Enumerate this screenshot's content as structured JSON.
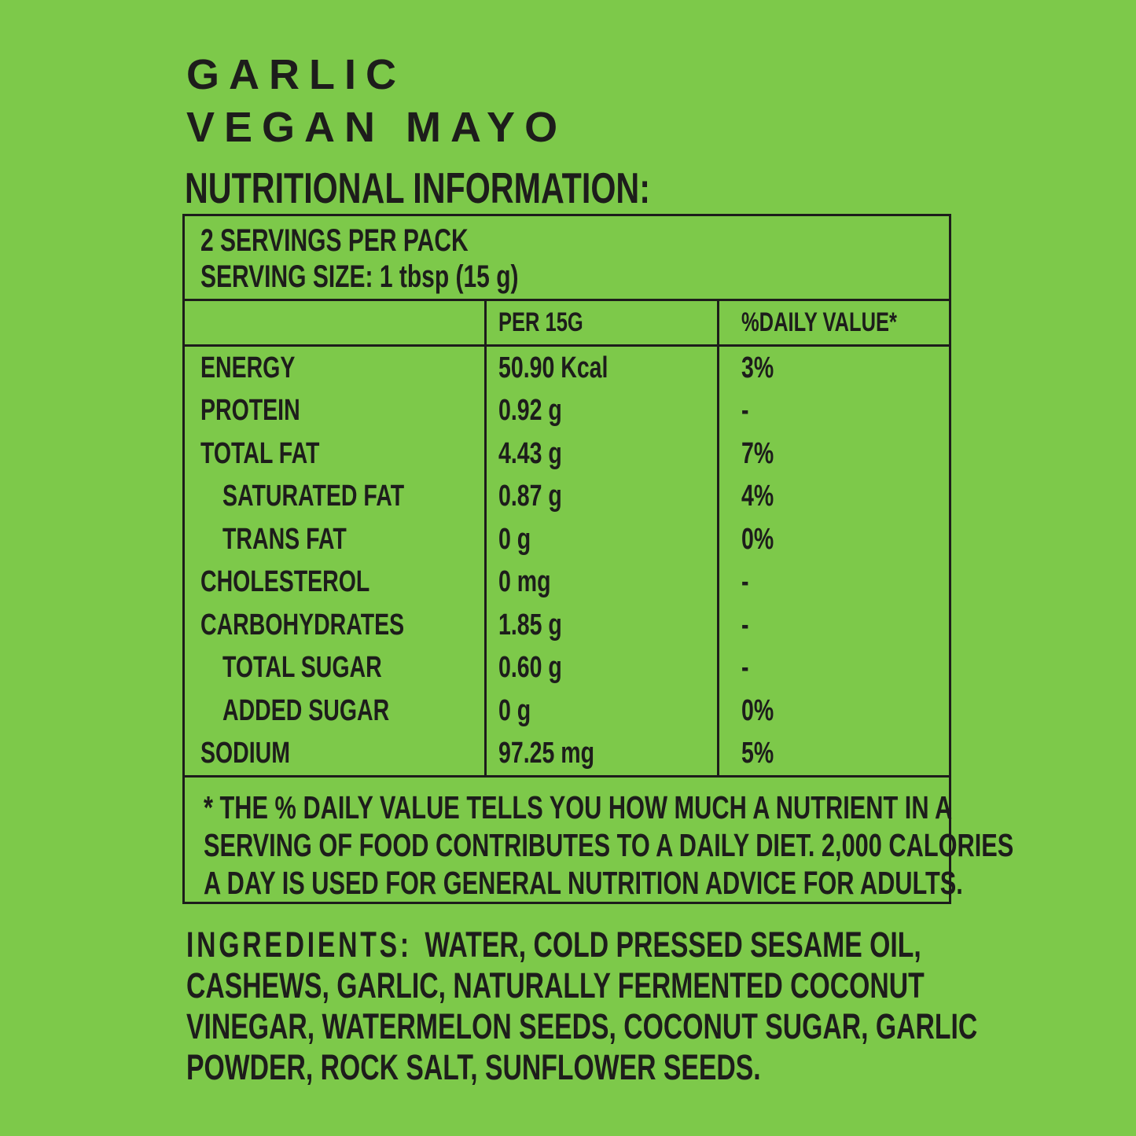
{
  "colors": {
    "background": "#7dc94a",
    "ink": "#1d1d1b"
  },
  "header": {
    "title_line1": "GARLIC",
    "title_line2": "VEGAN MAYO",
    "subtitle": "NUTRITIONAL INFORMATION:"
  },
  "nutrition_table": {
    "servings_per_pack": "2 SERVINGS PER PACK",
    "serving_size": "SERVING SIZE: 1 tbsp (15 g)",
    "columns": [
      "",
      "PER 15G",
      "%DAILY VALUE*"
    ],
    "rows": [
      {
        "label": "ENERGY",
        "amount": "50.90 Kcal",
        "daily_value": "3%",
        "indent": false
      },
      {
        "label": "PROTEIN",
        "amount": "0.92 g",
        "daily_value": "-",
        "indent": false
      },
      {
        "label": "TOTAL FAT",
        "amount": "4.43 g",
        "daily_value": "7%",
        "indent": false
      },
      {
        "label": "SATURATED FAT",
        "amount": "0.87 g",
        "daily_value": "4%",
        "indent": true
      },
      {
        "label": "TRANS FAT",
        "amount": "0 g",
        "daily_value": "0%",
        "indent": true
      },
      {
        "label": "CHOLESTEROL",
        "amount": "0 mg",
        "daily_value": "-",
        "indent": false
      },
      {
        "label": "CARBOHYDRATES",
        "amount": "1.85 g",
        "daily_value": "-",
        "indent": false
      },
      {
        "label": "TOTAL SUGAR",
        "amount": "0.60 g",
        "daily_value": "-",
        "indent": true
      },
      {
        "label": "ADDED SUGAR",
        "amount": "0 g",
        "daily_value": "0%",
        "indent": true
      },
      {
        "label": "SODIUM",
        "amount": "97.25 mg",
        "daily_value": "5%",
        "indent": false
      }
    ],
    "footnote_lines": [
      "* THE % DAILY VALUE TELLS YOU HOW MUCH A NUTRIENT IN A",
      "SERVING OF FOOD CONTRIBUTES TO A DAILY DIET. 2,000 CALORIES",
      "A DAY IS USED FOR GENERAL NUTRITION ADVICE FOR ADULTS."
    ]
  },
  "ingredients": {
    "label": "INGREDIENTS:",
    "lines": [
      "WATER, COLD PRESSED SESAME OIL,",
      "CASHEWS, GARLIC, NATURALLY FERMENTED COCONUT",
      "VINEGAR, WATERMELON SEEDS, COCONUT SUGAR, GARLIC",
      "POWDER, ROCK SALT, SUNFLOWER SEEDS."
    ]
  }
}
